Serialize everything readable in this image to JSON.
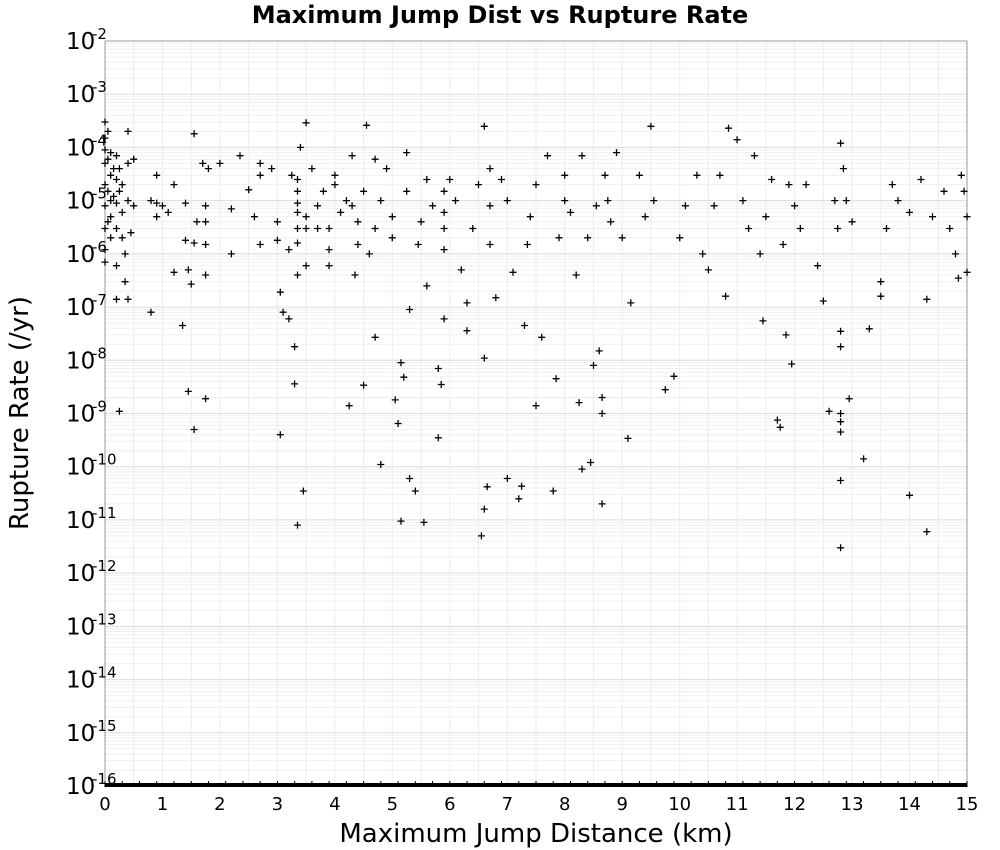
{
  "chart_data": {
    "type": "scatter",
    "title": "Maximum Jump Dist vs Rupture Rate",
    "xlabel": "Maximum Jump Distance (km)",
    "ylabel": "Rupture Rate (/yr)",
    "xlim": [
      0,
      15
    ],
    "ylim": [
      1e-16,
      0.01
    ],
    "yscale": "log",
    "grid": true,
    "marker": "+",
    "marker_color": "#000000",
    "x_ticks": [
      "0",
      "1",
      "2",
      "3",
      "4",
      "5",
      "6",
      "7",
      "8",
      "9",
      "10",
      "11",
      "12",
      "13",
      "14",
      "15"
    ],
    "y_ticks": [
      {
        "base": "10",
        "exp": "-16"
      },
      {
        "base": "10",
        "exp": "-15"
      },
      {
        "base": "10",
        "exp": "-14"
      },
      {
        "base": "10",
        "exp": "-13"
      },
      {
        "base": "10",
        "exp": "-12"
      },
      {
        "base": "10",
        "exp": "-11"
      },
      {
        "base": "10",
        "exp": "-10"
      },
      {
        "base": "10",
        "exp": "-9"
      },
      {
        "base": "10",
        "exp": "-8"
      },
      {
        "base": "10",
        "exp": "-7"
      },
      {
        "base": "10",
        "exp": "-6"
      },
      {
        "base": "10",
        "exp": "-5"
      },
      {
        "base": "10",
        "exp": "-4"
      },
      {
        "base": "10",
        "exp": "-3"
      },
      {
        "base": "10",
        "exp": "-2"
      }
    ],
    "points": [
      [
        0.0,
        0.0003
      ],
      [
        0.0,
        0.00015
      ],
      [
        0.0,
        9e-05
      ],
      [
        0.0,
        5e-05
      ],
      [
        0.0,
        2e-05
      ],
      [
        0.0,
        8e-06
      ],
      [
        0.0,
        3e-06
      ],
      [
        0.0,
        1.2e-06
      ],
      [
        0.0,
        7e-07
      ],
      [
        0.05,
        0.0002
      ],
      [
        0.05,
        6e-05
      ],
      [
        0.05,
        1.5e-05
      ],
      [
        0.05,
        4e-06
      ],
      [
        0.1,
        8e-05
      ],
      [
        0.1,
        3e-05
      ],
      [
        0.1,
        1e-05
      ],
      [
        0.1,
        5e-06
      ],
      [
        0.1,
        2e-06
      ],
      [
        0.15,
        4e-05
      ],
      [
        0.15,
        1.2e-05
      ],
      [
        0.2,
        7e-05
      ],
      [
        0.2,
        2.5e-05
      ],
      [
        0.2,
        9e-06
      ],
      [
        0.2,
        3e-06
      ],
      [
        0.2,
        6e-07
      ],
      [
        0.2,
        1.4e-07
      ],
      [
        0.25,
        1.1e-09
      ],
      [
        0.25,
        4e-05
      ],
      [
        0.25,
        1.5e-05
      ],
      [
        0.3,
        2e-05
      ],
      [
        0.3,
        6e-06
      ],
      [
        0.3,
        2e-06
      ],
      [
        0.35,
        3e-07
      ],
      [
        0.35,
        1e-06
      ],
      [
        0.4,
        0.0002
      ],
      [
        0.4,
        1.4e-07
      ],
      [
        0.4,
        5e-05
      ],
      [
        0.4,
        1e-05
      ],
      [
        0.45,
        2.5e-06
      ],
      [
        0.5,
        6e-05
      ],
      [
        0.5,
        8e-06
      ],
      [
        0.8,
        8e-08
      ],
      [
        0.8,
        1e-05
      ],
      [
        0.9,
        3e-05
      ],
      [
        0.9,
        9e-06
      ],
      [
        0.9,
        5e-06
      ],
      [
        1.0,
        8e-06
      ],
      [
        1.1,
        6e-06
      ],
      [
        1.2,
        2e-05
      ],
      [
        1.2,
        4.5e-07
      ],
      [
        1.35,
        4.5e-08
      ],
      [
        1.4,
        1.8e-06
      ],
      [
        1.4,
        9e-06
      ],
      [
        1.45,
        2.6e-09
      ],
      [
        1.45,
        5e-07
      ],
      [
        1.5,
        2.7e-07
      ],
      [
        1.55,
        5e-10
      ],
      [
        1.55,
        0.00018
      ],
      [
        1.55,
        1.6e-06
      ],
      [
        1.6,
        4e-06
      ],
      [
        1.7,
        5e-05
      ],
      [
        1.75,
        1.9e-09
      ],
      [
        1.75,
        4e-07
      ],
      [
        1.75,
        1.5e-06
      ],
      [
        1.75,
        4e-06
      ],
      [
        1.75,
        8e-06
      ],
      [
        1.8,
        4e-05
      ],
      [
        2.0,
        5e-05
      ],
      [
        2.2,
        1e-06
      ],
      [
        2.2,
        7e-06
      ],
      [
        2.35,
        7e-05
      ],
      [
        2.5,
        1.6e-05
      ],
      [
        2.6,
        5e-06
      ],
      [
        2.7,
        1.5e-06
      ],
      [
        2.7,
        5e-05
      ],
      [
        2.7,
        3e-05
      ],
      [
        2.9,
        4e-05
      ],
      [
        3.0,
        1.8e-06
      ],
      [
        3.0,
        4e-06
      ],
      [
        3.05,
        1.9e-07
      ],
      [
        3.05,
        4e-10
      ],
      [
        3.1,
        8e-08
      ],
      [
        3.2,
        6e-08
      ],
      [
        3.2,
        1.2e-06
      ],
      [
        3.25,
        3e-05
      ],
      [
        3.3,
        1.8e-08
      ],
      [
        3.3,
        3.6e-09
      ],
      [
        3.35,
        8e-12
      ],
      [
        3.35,
        4e-07
      ],
      [
        3.35,
        1.6e-06
      ],
      [
        3.35,
        3e-06
      ],
      [
        3.35,
        6e-06
      ],
      [
        3.35,
        9e-06
      ],
      [
        3.35,
        1.5e-05
      ],
      [
        3.35,
        2.5e-05
      ],
      [
        3.4,
        0.0001
      ],
      [
        3.45,
        3.5e-11
      ],
      [
        3.5,
        0.00029
      ],
      [
        3.5,
        6e-07
      ],
      [
        3.5,
        3e-06
      ],
      [
        3.5,
        5e-06
      ],
      [
        3.6,
        4e-05
      ],
      [
        3.7,
        3e-06
      ],
      [
        3.7,
        8e-06
      ],
      [
        3.8,
        1.5e-05
      ],
      [
        3.9,
        6e-07
      ],
      [
        3.9,
        1.2e-06
      ],
      [
        3.9,
        3e-06
      ],
      [
        4.0,
        3e-05
      ],
      [
        4.0,
        2e-05
      ],
      [
        4.1,
        6e-06
      ],
      [
        4.2,
        1e-05
      ],
      [
        4.25,
        1.4e-09
      ],
      [
        4.3,
        7e-05
      ],
      [
        4.3,
        8e-06
      ],
      [
        4.35,
        4e-07
      ],
      [
        4.4,
        1.5e-06
      ],
      [
        4.4,
        4e-06
      ],
      [
        4.5,
        1.5e-05
      ],
      [
        4.5,
        3.4e-09
      ],
      [
        4.55,
        0.00026
      ],
      [
        4.6,
        1e-06
      ],
      [
        4.7,
        3e-06
      ],
      [
        4.7,
        2.7e-08
      ],
      [
        4.7,
        6e-05
      ],
      [
        4.8,
        1.1e-10
      ],
      [
        4.8,
        1e-05
      ],
      [
        4.9,
        4e-05
      ],
      [
        5.0,
        2e-06
      ],
      [
        5.0,
        5e-06
      ],
      [
        5.05,
        1.8e-09
      ],
      [
        5.1,
        6.5e-10
      ],
      [
        5.15,
        9.5e-12
      ],
      [
        5.15,
        9e-09
      ],
      [
        5.2,
        4.8e-09
      ],
      [
        5.25,
        8e-05
      ],
      [
        5.25,
        1.5e-05
      ],
      [
        5.3,
        6e-11
      ],
      [
        5.3,
        9e-08
      ],
      [
        5.4,
        3.5e-11
      ],
      [
        5.45,
        1.5e-06
      ],
      [
        5.5,
        4e-06
      ],
      [
        5.55,
        9e-12
      ],
      [
        5.6,
        2.5e-05
      ],
      [
        5.6,
        2.5e-07
      ],
      [
        5.7,
        8e-06
      ],
      [
        5.8,
        7e-09
      ],
      [
        5.8,
        3.5e-10
      ],
      [
        5.85,
        3.5e-09
      ],
      [
        5.9,
        6e-08
      ],
      [
        5.9,
        1.2e-06
      ],
      [
        5.9,
        3e-06
      ],
      [
        5.9,
        6e-06
      ],
      [
        5.9,
        1.5e-05
      ],
      [
        6.0,
        2.5e-05
      ],
      [
        6.1,
        1e-05
      ],
      [
        6.2,
        5e-07
      ],
      [
        6.3,
        3.6e-08
      ],
      [
        6.3,
        1.2e-07
      ],
      [
        6.4,
        3e-06
      ],
      [
        6.5,
        2e-05
      ],
      [
        6.55,
        5e-12
      ],
      [
        6.6,
        0.00025
      ],
      [
        6.6,
        1.1e-08
      ],
      [
        6.6,
        1.6e-11
      ],
      [
        6.65,
        4.2e-11
      ],
      [
        6.7,
        1.5e-06
      ],
      [
        6.7,
        8e-06
      ],
      [
        6.7,
        4e-05
      ],
      [
        6.8,
        1.5e-07
      ],
      [
        6.9,
        2.5e-05
      ],
      [
        7.0,
        6e-11
      ],
      [
        7.0,
        1e-05
      ],
      [
        7.1,
        4.5e-07
      ],
      [
        7.2,
        2.5e-11
      ],
      [
        7.25,
        4.3e-11
      ],
      [
        7.3,
        4.5e-08
      ],
      [
        7.35,
        1.5e-06
      ],
      [
        7.4,
        5e-06
      ],
      [
        7.5,
        1.4e-09
      ],
      [
        7.5,
        2e-05
      ],
      [
        7.6,
        2.7e-08
      ],
      [
        7.7,
        7e-05
      ],
      [
        7.8,
        3.5e-11
      ],
      [
        7.85,
        4.5e-09
      ],
      [
        7.9,
        2e-06
      ],
      [
        8.0,
        3e-05
      ],
      [
        8.0,
        1e-05
      ],
      [
        8.1,
        6e-06
      ],
      [
        8.2,
        4e-07
      ],
      [
        8.25,
        1.6e-09
      ],
      [
        8.3,
        9e-11
      ],
      [
        8.3,
        7e-05
      ],
      [
        8.4,
        2e-06
      ],
      [
        8.45,
        1.2e-10
      ],
      [
        8.5,
        8e-09
      ],
      [
        8.55,
        8e-06
      ],
      [
        8.6,
        1.5e-08
      ],
      [
        8.65,
        2e-09
      ],
      [
        8.65,
        1e-09
      ],
      [
        8.65,
        2e-11
      ],
      [
        8.7,
        3e-05
      ],
      [
        8.75,
        1e-05
      ],
      [
        8.8,
        4e-06
      ],
      [
        8.9,
        8e-05
      ],
      [
        9.0,
        2e-06
      ],
      [
        9.1,
        3.4e-10
      ],
      [
        9.15,
        1.2e-07
      ],
      [
        9.3,
        3e-05
      ],
      [
        9.4,
        5e-06
      ],
      [
        9.5,
        0.00025
      ],
      [
        9.55,
        1e-05
      ],
      [
        9.75,
        2.8e-09
      ],
      [
        9.9,
        5e-09
      ],
      [
        10.0,
        2e-06
      ],
      [
        10.1,
        8e-06
      ],
      [
        10.3,
        3e-05
      ],
      [
        10.4,
        1e-06
      ],
      [
        10.5,
        5e-07
      ],
      [
        10.6,
        8e-06
      ],
      [
        10.7,
        3e-05
      ],
      [
        10.8,
        1.6e-07
      ],
      [
        10.85,
        0.00023
      ],
      [
        11.0,
        0.00014
      ],
      [
        11.1,
        1e-05
      ],
      [
        11.2,
        3e-06
      ],
      [
        11.3,
        7e-05
      ],
      [
        11.4,
        1e-06
      ],
      [
        11.45,
        5.5e-08
      ],
      [
        11.5,
        5e-06
      ],
      [
        11.6,
        2.5e-05
      ],
      [
        11.7,
        7.5e-10
      ],
      [
        11.75,
        5.5e-10
      ],
      [
        11.8,
        1.5e-06
      ],
      [
        11.85,
        3e-08
      ],
      [
        11.9,
        2e-05
      ],
      [
        11.95,
        8.5e-09
      ],
      [
        12.0,
        8e-06
      ],
      [
        12.1,
        3e-06
      ],
      [
        12.2,
        2e-05
      ],
      [
        12.4,
        6e-07
      ],
      [
        12.5,
        1.3e-07
      ],
      [
        12.6,
        1.1e-09
      ],
      [
        12.7,
        1e-05
      ],
      [
        12.75,
        3e-06
      ],
      [
        12.8,
        0.00012
      ],
      [
        12.8,
        1.8e-08
      ],
      [
        12.8,
        3.5e-08
      ],
      [
        12.8,
        1e-09
      ],
      [
        12.8,
        7e-10
      ],
      [
        12.8,
        4.5e-10
      ],
      [
        12.8,
        5.5e-11
      ],
      [
        12.8,
        3e-12
      ],
      [
        12.85,
        4e-05
      ],
      [
        12.9,
        1e-05
      ],
      [
        12.95,
        1.9e-09
      ],
      [
        13.0,
        4e-06
      ],
      [
        13.2,
        1.4e-10
      ],
      [
        13.3,
        3.9e-08
      ],
      [
        13.5,
        1.6e-07
      ],
      [
        13.5,
        3e-07
      ],
      [
        13.6,
        3e-06
      ],
      [
        13.7,
        2e-05
      ],
      [
        13.8,
        1e-05
      ],
      [
        14.0,
        2.9e-11
      ],
      [
        14.0,
        6e-06
      ],
      [
        14.2,
        2.5e-05
      ],
      [
        14.3,
        6e-12
      ],
      [
        14.3,
        1.4e-07
      ],
      [
        14.4,
        5e-06
      ],
      [
        14.6,
        1.5e-05
      ],
      [
        14.7,
        3e-06
      ],
      [
        14.8,
        1e-06
      ],
      [
        14.85,
        3.5e-07
      ],
      [
        14.9,
        3e-05
      ],
      [
        14.95,
        1.5e-05
      ],
      [
        15.0,
        4.5e-07
      ],
      [
        15.0,
        5e-06
      ]
    ],
    "floor_points_x": [
      0.0,
      0.3,
      0.6,
      0.9,
      1.2,
      1.5,
      1.8,
      2.1,
      2.4,
      2.7,
      3.0,
      3.3,
      3.6,
      3.9,
      4.2,
      4.5,
      4.8,
      5.1,
      5.4,
      5.7,
      6.0,
      6.3,
      6.6,
      6.9,
      7.2,
      7.5,
      7.8,
      8.1,
      8.4,
      8.7,
      9.0,
      9.3,
      9.6,
      9.9,
      10.2,
      10.5,
      10.8,
      11.1,
      11.4,
      11.7,
      12.0,
      12.3,
      12.6,
      12.9,
      13.2,
      13.5,
      13.8,
      14.1,
      14.4,
      14.7,
      15.0
    ]
  }
}
